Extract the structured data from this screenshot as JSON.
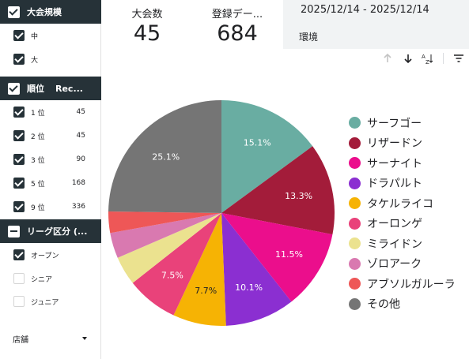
{
  "scorecards": [
    {
      "label": "大会数",
      "value": "45"
    },
    {
      "label": "登録デー...",
      "value": "684"
    }
  ],
  "date_range": "2025/12/14 - 2025/12/14",
  "env_label": "環境",
  "filters": {
    "size": {
      "title": "大会規模",
      "items": [
        {
          "label": "中",
          "checked": true
        },
        {
          "label": "大",
          "checked": true
        }
      ]
    },
    "rank": {
      "title": "順位",
      "extra": "Rec...",
      "items": [
        {
          "label": "1 位",
          "count": "45"
        },
        {
          "label": "2 位",
          "count": "45"
        },
        {
          "label": "3 位",
          "count": "90"
        },
        {
          "label": "5 位",
          "count": "168"
        },
        {
          "label": "9 位",
          "count": "336"
        }
      ]
    },
    "league": {
      "title": "リーグ区分 (...",
      "items": [
        {
          "label": "オープン",
          "checked": true
        },
        {
          "label": "シニア",
          "checked": false
        },
        {
          "label": "ジュニア",
          "checked": false
        }
      ]
    },
    "store": {
      "label": "店舗"
    }
  },
  "toolbar": {
    "icons": [
      "arrow-up-icon",
      "arrow-down-icon",
      "sort-az-icon",
      "filter-icon"
    ]
  },
  "chart_data": {
    "type": "pie",
    "series": [
      {
        "name": "サーフゴー",
        "value": 15.1,
        "label": "15.1%",
        "color": "#69ADA2"
      },
      {
        "name": "リザードン",
        "value": 13.3,
        "label": "13.3%",
        "color": "#A31C3A"
      },
      {
        "name": "サーナイト",
        "value": 11.5,
        "label": "11.5%",
        "color": "#EB0E8C"
      },
      {
        "name": "ドラパルト",
        "value": 10.1,
        "label": "10.1%",
        "color": "#8B2FD1"
      },
      {
        "name": "タケルライコ",
        "value": 7.7,
        "label": "7.7%",
        "color": "#F6B304"
      },
      {
        "name": "オーロンゲ",
        "value": 7.5,
        "label": "7.5%",
        "color": "#E9427A"
      },
      {
        "name": "ミライドン",
        "value": 4.2,
        "label": "",
        "color": "#EBE28F"
      },
      {
        "name": "ゾロアーク",
        "value": 3.7,
        "label": "",
        "color": "#D979B0"
      },
      {
        "name": "アブソルガルーラ",
        "value": 3.1,
        "label": "",
        "color": "#EE5757"
      },
      {
        "name": "その他",
        "value": 25.1,
        "label": "25.1%",
        "color": "#757575"
      }
    ],
    "legend_position": "right"
  }
}
